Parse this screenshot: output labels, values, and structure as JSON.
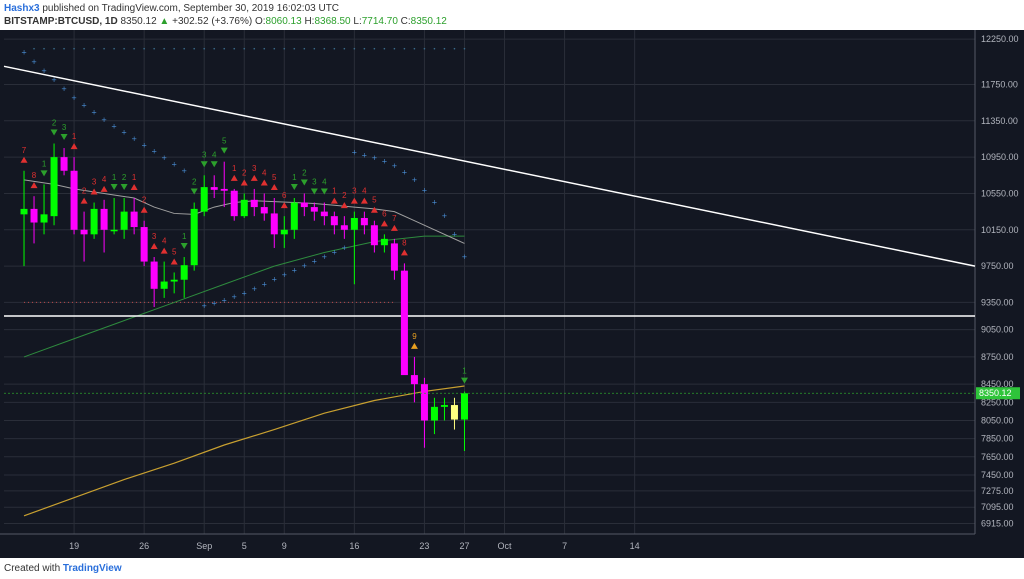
{
  "header": {
    "author": "Hashx3",
    "published_text": "published on TradingView.com, September 30, 2019 16:02:03 UTC",
    "symbol": "BITSTAMP:BTCUSD, 1D",
    "last_price": "8350.12",
    "change_arrow": "▲",
    "change": "+302.52 (+3.76%)",
    "o_label": "O:",
    "o_value": "8060.13",
    "h_label": "H:",
    "h_value": "8368.50",
    "l_label": "L:",
    "l_value": "7714.70",
    "c_label": "C:",
    "c_value": "8350.12"
  },
  "footer": {
    "created_with": "Created with",
    "logo_text": "TradingView"
  },
  "chart_data": {
    "type": "candlestick",
    "ylim": [
      6800,
      12350
    ],
    "x_range_days": [
      -2,
      95
    ],
    "y_ticks": [
      {
        "value": 12250,
        "label": "12250.00"
      },
      {
        "value": 11750,
        "label": "11750.00"
      },
      {
        "value": 11350,
        "label": "11350.00"
      },
      {
        "value": 10950,
        "label": "10950.00"
      },
      {
        "value": 10550,
        "label": "10550.00"
      },
      {
        "value": 10150,
        "label": "10150.00"
      },
      {
        "value": 9750,
        "label": "9750.00"
      },
      {
        "value": 9350,
        "label": "9350.00"
      },
      {
        "value": 9050,
        "label": "9050.00"
      },
      {
        "value": 8750,
        "label": "8750.00"
      },
      {
        "value": 8450,
        "label": "8450.00"
      },
      {
        "value": 8250,
        "label": "8250.00"
      },
      {
        "value": 8050,
        "label": "8050.00"
      },
      {
        "value": 7850,
        "label": "7850.00"
      },
      {
        "value": 7650,
        "label": "7650.00"
      },
      {
        "value": 7450,
        "label": "7450.00"
      },
      {
        "value": 7275,
        "label": "7275.00"
      },
      {
        "value": 7095,
        "label": "7095.00"
      },
      {
        "value": 6915,
        "label": "6915.00"
      }
    ],
    "x_ticks": [
      {
        "day": 5,
        "label": "19"
      },
      {
        "day": 12,
        "label": "26"
      },
      {
        "day": 18,
        "label": "Sep"
      },
      {
        "day": 22,
        "label": "5"
      },
      {
        "day": 26,
        "label": "9"
      },
      {
        "day": 33,
        "label": "16"
      },
      {
        "day": 40,
        "label": "23"
      },
      {
        "day": 44,
        "label": "27"
      },
      {
        "day": 48,
        "label": "Oct"
      },
      {
        "day": 54,
        "label": "7"
      },
      {
        "day": 61,
        "label": "14"
      }
    ],
    "candles": [
      {
        "day": 0,
        "o": 10320,
        "h": 10800,
        "l": 9750,
        "c": 10380
      },
      {
        "day": 1,
        "o": 10380,
        "h": 10520,
        "l": 10000,
        "c": 10230
      },
      {
        "day": 2,
        "o": 10230,
        "h": 10650,
        "l": 10100,
        "c": 10320
      },
      {
        "day": 3,
        "o": 10300,
        "h": 11100,
        "l": 10200,
        "c": 10950
      },
      {
        "day": 4,
        "o": 10950,
        "h": 11050,
        "l": 10750,
        "c": 10800
      },
      {
        "day": 5,
        "o": 10800,
        "h": 10950,
        "l": 10100,
        "c": 10150
      },
      {
        "day": 6,
        "o": 10150,
        "h": 10350,
        "l": 9800,
        "c": 10100
      },
      {
        "day": 7,
        "o": 10100,
        "h": 10450,
        "l": 10050,
        "c": 10380
      },
      {
        "day": 8,
        "o": 10380,
        "h": 10480,
        "l": 9900,
        "c": 10150
      },
      {
        "day": 9,
        "o": 10150,
        "h": 10500,
        "l": 10100,
        "c": 10150
      },
      {
        "day": 10,
        "o": 10150,
        "h": 10500,
        "l": 10050,
        "c": 10350
      },
      {
        "day": 11,
        "o": 10350,
        "h": 10500,
        "l": 10100,
        "c": 10180
      },
      {
        "day": 12,
        "o": 10180,
        "h": 10250,
        "l": 9750,
        "c": 9800
      },
      {
        "day": 13,
        "o": 9800,
        "h": 9850,
        "l": 9300,
        "c": 9500
      },
      {
        "day": 14,
        "o": 9500,
        "h": 9800,
        "l": 9400,
        "c": 9580
      },
      {
        "day": 15,
        "o": 9580,
        "h": 9680,
        "l": 9450,
        "c": 9600
      },
      {
        "day": 16,
        "o": 9600,
        "h": 9850,
        "l": 9400,
        "c": 9760
      },
      {
        "day": 17,
        "o": 9760,
        "h": 10450,
        "l": 9700,
        "c": 10380
      },
      {
        "day": 18,
        "o": 10350,
        "h": 10750,
        "l": 10300,
        "c": 10620
      },
      {
        "day": 19,
        "o": 10620,
        "h": 10750,
        "l": 10500,
        "c": 10590
      },
      {
        "day": 20,
        "o": 10600,
        "h": 10900,
        "l": 10400,
        "c": 10580
      },
      {
        "day": 21,
        "o": 10580,
        "h": 10600,
        "l": 10250,
        "c": 10300
      },
      {
        "day": 22,
        "o": 10300,
        "h": 10550,
        "l": 10280,
        "c": 10480
      },
      {
        "day": 23,
        "o": 10480,
        "h": 10600,
        "l": 10300,
        "c": 10400
      },
      {
        "day": 24,
        "o": 10400,
        "h": 10550,
        "l": 10250,
        "c": 10330
      },
      {
        "day": 25,
        "o": 10330,
        "h": 10500,
        "l": 9950,
        "c": 10100
      },
      {
        "day": 26,
        "o": 10100,
        "h": 10300,
        "l": 9950,
        "c": 10150
      },
      {
        "day": 27,
        "o": 10150,
        "h": 10500,
        "l": 10050,
        "c": 10450
      },
      {
        "day": 28,
        "o": 10450,
        "h": 10550,
        "l": 10300,
        "c": 10400
      },
      {
        "day": 29,
        "o": 10400,
        "h": 10450,
        "l": 10250,
        "c": 10350
      },
      {
        "day": 30,
        "o": 10350,
        "h": 10450,
        "l": 10200,
        "c": 10300
      },
      {
        "day": 31,
        "o": 10300,
        "h": 10350,
        "l": 10100,
        "c": 10200
      },
      {
        "day": 32,
        "o": 10200,
        "h": 10300,
        "l": 10050,
        "c": 10150
      },
      {
        "day": 33,
        "o": 10150,
        "h": 10350,
        "l": 9550,
        "c": 10280
      },
      {
        "day": 34,
        "o": 10280,
        "h": 10350,
        "l": 10100,
        "c": 10200
      },
      {
        "day": 35,
        "o": 10200,
        "h": 10250,
        "l": 9900,
        "c": 9980
      },
      {
        "day": 36,
        "o": 9980,
        "h": 10100,
        "l": 9900,
        "c": 10050
      },
      {
        "day": 37,
        "o": 10000,
        "h": 10050,
        "l": 9600,
        "c": 9700
      },
      {
        "day": 38,
        "o": 9700,
        "h": 9780,
        "l": 8600,
        "c": 8550
      },
      {
        "day": 39,
        "o": 8550,
        "h": 8750,
        "l": 8250,
        "c": 8450
      },
      {
        "day": 40,
        "o": 8450,
        "h": 8520,
        "l": 7750,
        "c": 8050
      },
      {
        "day": 41,
        "o": 8050,
        "h": 8300,
        "l": 7900,
        "c": 8200
      },
      {
        "day": 42,
        "o": 8200,
        "h": 8300,
        "l": 8050,
        "c": 8220
      },
      {
        "day": 43,
        "o": 8220,
        "h": 8300,
        "l": 7950,
        "c": 8060
      },
      {
        "day": 44,
        "o": 8060,
        "h": 8368,
        "l": 7714,
        "c": 8350
      }
    ],
    "sequential_labels": [
      {
        "day": 0,
        "text": "7",
        "dir": "up",
        "color": "#e03030"
      },
      {
        "day": 1,
        "text": "8",
        "dir": "up",
        "color": "#e03030"
      },
      {
        "day": 2,
        "text": "1",
        "dir": "down",
        "color": "#2ca02c"
      },
      {
        "day": 3,
        "text": "2",
        "dir": "down",
        "color": "#2ca02c"
      },
      {
        "day": 4,
        "text": "3",
        "dir": "down",
        "color": "#2ca02c"
      },
      {
        "day": 5,
        "text": "1",
        "dir": "up",
        "color": "#e03030"
      },
      {
        "day": 6,
        "text": "2",
        "dir": "up",
        "color": "#e03030"
      },
      {
        "day": 7,
        "text": "3",
        "dir": "up",
        "color": "#e03030"
      },
      {
        "day": 8,
        "text": "4",
        "dir": "up",
        "color": "#e03030"
      },
      {
        "day": 9,
        "text": "1",
        "dir": "down",
        "color": "#2ca02c"
      },
      {
        "day": 10,
        "text": "2",
        "dir": "down",
        "color": "#2ca02c"
      },
      {
        "day": 11,
        "text": "1",
        "dir": "up",
        "color": "#e03030"
      },
      {
        "day": 12,
        "text": "2",
        "dir": "up",
        "color": "#e03030"
      },
      {
        "day": 13,
        "text": "3",
        "dir": "up",
        "color": "#e03030"
      },
      {
        "day": 14,
        "text": "4",
        "dir": "up",
        "color": "#e03030"
      },
      {
        "day": 15,
        "text": "5",
        "dir": "up",
        "color": "#e03030"
      },
      {
        "day": 16,
        "text": "1",
        "dir": "down",
        "color": "#2ca02c"
      },
      {
        "day": 17,
        "text": "2",
        "dir": "down",
        "color": "#2ca02c"
      },
      {
        "day": 18,
        "text": "3",
        "dir": "down",
        "color": "#2ca02c"
      },
      {
        "day": 19,
        "text": "4",
        "dir": "down",
        "color": "#2ca02c"
      },
      {
        "day": 20,
        "text": "5",
        "dir": "down",
        "color": "#2ca02c"
      },
      {
        "day": 21,
        "text": "1",
        "dir": "up",
        "color": "#e03030"
      },
      {
        "day": 22,
        "text": "2",
        "dir": "up",
        "color": "#e03030"
      },
      {
        "day": 23,
        "text": "3",
        "dir": "up",
        "color": "#e03030"
      },
      {
        "day": 24,
        "text": "4",
        "dir": "up",
        "color": "#e03030"
      },
      {
        "day": 25,
        "text": "5",
        "dir": "up",
        "color": "#e03030"
      },
      {
        "day": 26,
        "text": "6",
        "dir": "up",
        "color": "#e03030"
      },
      {
        "day": 27,
        "text": "1",
        "dir": "down",
        "color": "#2ca02c"
      },
      {
        "day": 28,
        "text": "2",
        "dir": "down",
        "color": "#2ca02c"
      },
      {
        "day": 29,
        "text": "3",
        "dir": "down",
        "color": "#2ca02c"
      },
      {
        "day": 30,
        "text": "4",
        "dir": "down",
        "color": "#2ca02c"
      },
      {
        "day": 31,
        "text": "1",
        "dir": "up",
        "color": "#e03030"
      },
      {
        "day": 32,
        "text": "2",
        "dir": "up",
        "color": "#e03030"
      },
      {
        "day": 33,
        "text": "3",
        "dir": "up",
        "color": "#e03030"
      },
      {
        "day": 34,
        "text": "4",
        "dir": "up",
        "color": "#e03030"
      },
      {
        "day": 35,
        "text": "5",
        "dir": "up",
        "color": "#e03030"
      },
      {
        "day": 36,
        "text": "6",
        "dir": "up",
        "color": "#e03030"
      },
      {
        "day": 37,
        "text": "7",
        "dir": "up",
        "color": "#e03030"
      },
      {
        "day": 38,
        "text": "8",
        "dir": "up",
        "color": "#e03030"
      },
      {
        "day": 39,
        "text": "9",
        "dir": "up",
        "color": "#e8a020"
      },
      {
        "day": 44,
        "text": "1",
        "dir": "down",
        "color": "#2ca02c"
      }
    ],
    "psar_dots": [
      {
        "day": 0,
        "v": 12100
      },
      {
        "day": 1,
        "v": 12000
      },
      {
        "day": 2,
        "v": 11900
      },
      {
        "day": 3,
        "v": 11800
      },
      {
        "day": 4,
        "v": 11700
      },
      {
        "day": 5,
        "v": 11600
      },
      {
        "day": 6,
        "v": 11520
      },
      {
        "day": 7,
        "v": 11440
      },
      {
        "day": 8,
        "v": 11360
      },
      {
        "day": 9,
        "v": 11290
      },
      {
        "day": 10,
        "v": 11220
      },
      {
        "day": 11,
        "v": 11150
      },
      {
        "day": 12,
        "v": 11080
      },
      {
        "day": 13,
        "v": 11010
      },
      {
        "day": 14,
        "v": 10940
      },
      {
        "day": 15,
        "v": 10870
      },
      {
        "day": 16,
        "v": 10800
      },
      {
        "day": 18,
        "v": 9310
      },
      {
        "day": 19,
        "v": 9340
      },
      {
        "day": 20,
        "v": 9370
      },
      {
        "day": 21,
        "v": 9410
      },
      {
        "day": 22,
        "v": 9450
      },
      {
        "day": 23,
        "v": 9500
      },
      {
        "day": 24,
        "v": 9550
      },
      {
        "day": 25,
        "v": 9600
      },
      {
        "day": 26,
        "v": 9650
      },
      {
        "day": 27,
        "v": 9700
      },
      {
        "day": 28,
        "v": 9750
      },
      {
        "day": 29,
        "v": 9800
      },
      {
        "day": 30,
        "v": 9850
      },
      {
        "day": 31,
        "v": 9900
      },
      {
        "day": 32,
        "v": 9950
      },
      {
        "day": 33,
        "v": 11000
      },
      {
        "day": 34,
        "v": 10970
      },
      {
        "day": 35,
        "v": 10940
      },
      {
        "day": 36,
        "v": 10900
      },
      {
        "day": 37,
        "v": 10850
      },
      {
        "day": 38,
        "v": 10780
      },
      {
        "day": 39,
        "v": 10700
      },
      {
        "day": 40,
        "v": 10580
      },
      {
        "day": 41,
        "v": 10450
      },
      {
        "day": 42,
        "v": 10300
      },
      {
        "day": 43,
        "v": 10100
      },
      {
        "day": 44,
        "v": 9850
      }
    ],
    "top_dot_row": {
      "value": 12100,
      "from_day": 1,
      "to_day": 44
    },
    "dotted_level": {
      "value": 9350,
      "from_day": 0,
      "to_day": 37
    },
    "trendline": {
      "from": [
        -2,
        11950
      ],
      "to": [
        95,
        9750
      ],
      "color": "#ffffff"
    },
    "horizontal_line": {
      "value": 9200,
      "color": "#ffffff"
    },
    "ma_gray": {
      "color": "#a0a0a0",
      "points": [
        [
          0,
          10700
        ],
        [
          3,
          10650
        ],
        [
          5,
          10600
        ],
        [
          8,
          10550
        ],
        [
          11,
          10500
        ],
        [
          13,
          10400
        ],
        [
          15,
          10330
        ],
        [
          17,
          10320
        ],
        [
          19,
          10400
        ],
        [
          21,
          10450
        ],
        [
          23,
          10470
        ],
        [
          25,
          10460
        ],
        [
          27,
          10450
        ],
        [
          29,
          10440
        ],
        [
          31,
          10420
        ],
        [
          33,
          10400
        ],
        [
          35,
          10380
        ],
        [
          37,
          10350
        ],
        [
          39,
          10250
        ],
        [
          41,
          10150
        ],
        [
          43,
          10050
        ],
        [
          44,
          10000
        ]
      ]
    },
    "ma_green": {
      "color": "#2e8b3e",
      "points": [
        [
          0,
          8750
        ],
        [
          5,
          8950
        ],
        [
          10,
          9150
        ],
        [
          15,
          9350
        ],
        [
          20,
          9550
        ],
        [
          25,
          9750
        ],
        [
          30,
          9900
        ],
        [
          35,
          10020
        ],
        [
          40,
          10080
        ],
        [
          44,
          10080
        ]
      ]
    },
    "ma_orange": {
      "color": "#c8a030",
      "points": [
        [
          0,
          7000
        ],
        [
          5,
          7200
        ],
        [
          10,
          7400
        ],
        [
          15,
          7580
        ],
        [
          20,
          7780
        ],
        [
          25,
          7950
        ],
        [
          30,
          8130
        ],
        [
          35,
          8270
        ],
        [
          40,
          8370
        ],
        [
          44,
          8430
        ]
      ]
    },
    "price_line_value": 8350.12,
    "price_label": "8350.12",
    "colors": {
      "background": "#131722",
      "up_candle": "#00ff00",
      "down_candle": "#ff00ff",
      "doji_candle": "#ffff80",
      "psar": "#4a90d9",
      "grid": "#2a2e39",
      "axis_text": "#b2b5be"
    }
  }
}
